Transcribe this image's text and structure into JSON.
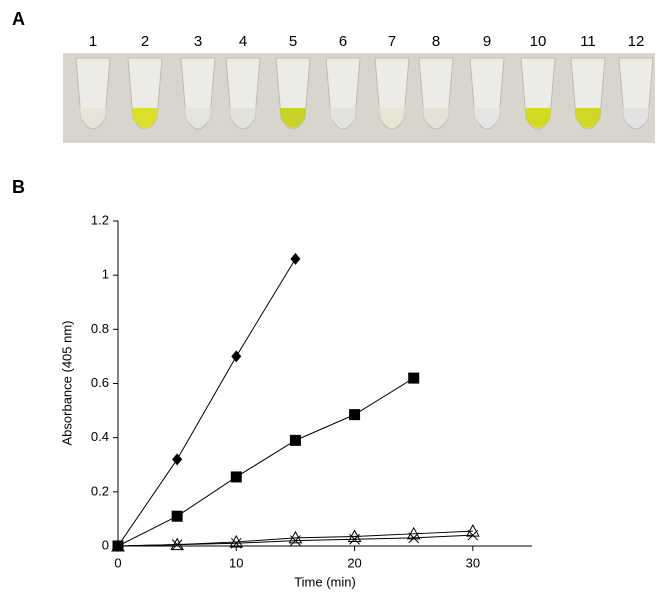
{
  "panel_a": {
    "label": "A",
    "tubes": [
      {
        "label": "1",
        "color": "#e6e4d6"
      },
      {
        "label": "2",
        "color": "#d9df2a"
      },
      {
        "label": "3",
        "color": "#e4e4dc"
      },
      {
        "label": "4",
        "color": "#e0e2dc"
      },
      {
        "label": "5",
        "color": "#c7d22a"
      },
      {
        "label": "6",
        "color": "#e2e2dc"
      },
      {
        "label": "7",
        "color": "#e6e4d2"
      },
      {
        "label": "8",
        "color": "#e4e2d6"
      },
      {
        "label": "9",
        "color": "#e4e4e4"
      },
      {
        "label": "10",
        "color": "#d2da22"
      },
      {
        "label": "11",
        "color": "#cfd826"
      },
      {
        "label": "12",
        "color": "#e2e2e2"
      }
    ]
  },
  "panel_b": {
    "label": "B"
  },
  "chart_data": {
    "type": "line",
    "x_label": "Time (min)",
    "y_label": "Absorbance (405 nm)",
    "x": [
      0,
      5,
      10,
      15,
      20,
      25,
      30
    ],
    "series": [
      {
        "marker": "diamond",
        "color": "#000000",
        "values": [
          0,
          0.32,
          0.7,
          1.06,
          null,
          null,
          null
        ]
      },
      {
        "marker": "square",
        "color": "#000000",
        "values": [
          0,
          0.11,
          0.255,
          0.39,
          0.485,
          0.62,
          null
        ]
      },
      {
        "marker": "triangle",
        "color": "#000000",
        "values": [
          0,
          0.005,
          0.015,
          0.03,
          0.035,
          0.045,
          0.055
        ]
      },
      {
        "marker": "cross",
        "color": "#000000",
        "values": [
          0,
          0.005,
          0.01,
          0.02,
          0.025,
          0.03,
          0.04
        ]
      }
    ],
    "xlim": [
      0,
      35
    ],
    "xticks": [
      0,
      10,
      20,
      30
    ],
    "ylim": [
      0,
      1.2
    ],
    "yticks": [
      0,
      0.2,
      0.4,
      0.6,
      0.8,
      1,
      1.2
    ]
  }
}
